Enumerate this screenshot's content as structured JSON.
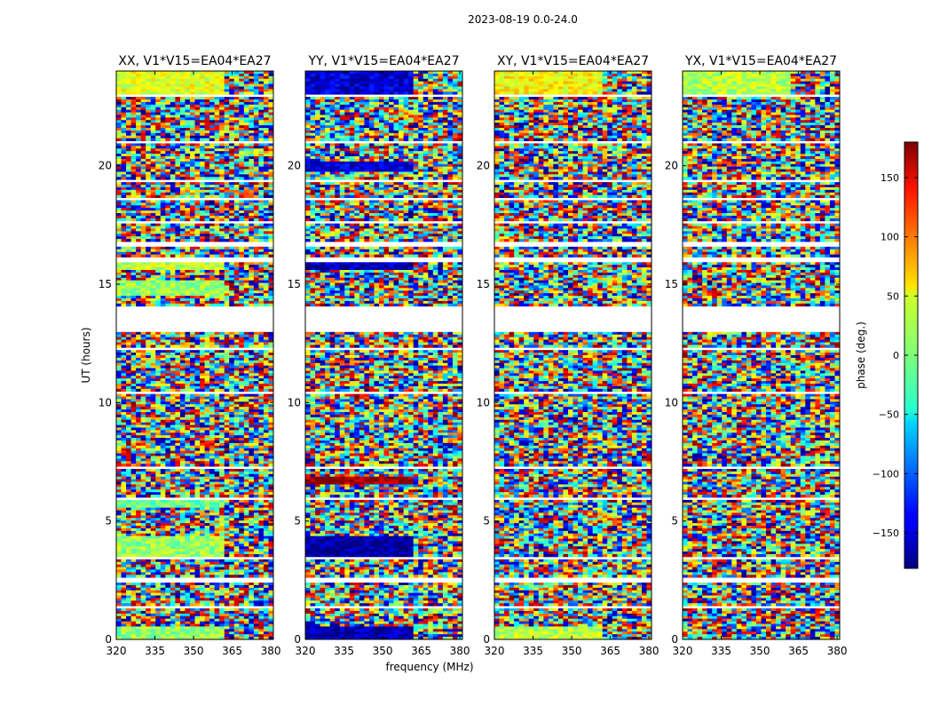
{
  "chart_data": {
    "type": "heatmap",
    "suptitle": "2023-08-19 0.0-24.0",
    "xlabel": "frequency (MHz)",
    "ylabel": "UT (hours)",
    "xlim": [
      320,
      381
    ],
    "ylim": [
      0,
      24
    ],
    "x_ticks": [
      320,
      335,
      350,
      365,
      380
    ],
    "y_ticks": [
      0,
      5,
      10,
      15,
      20
    ],
    "colorbar": {
      "label": "phase (deg.)",
      "range": [
        -180,
        180
      ],
      "ticks": [
        150,
        100,
        50,
        0,
        -50,
        -100,
        -150
      ],
      "tick_labels": [
        "150",
        "100",
        "50",
        "0",
        "−50",
        "−100",
        "−150"
      ],
      "colormap": "jet"
    },
    "data_gaps_hours": [
      [
        0.5,
        0.55
      ],
      [
        1.3,
        1.42
      ],
      [
        2.45,
        2.6
      ],
      [
        3.35,
        3.45
      ],
      [
        5.85,
        6.0
      ],
      [
        7.2,
        7.3
      ],
      [
        10.4,
        10.5
      ],
      [
        12.2,
        12.3
      ],
      [
        13.0,
        14.1
      ],
      [
        15.55,
        15.6
      ],
      [
        15.95,
        16.1
      ],
      [
        16.6,
        16.75
      ],
      [
        17.6,
        17.72
      ],
      [
        18.5,
        18.62
      ],
      [
        19.3,
        19.38
      ],
      [
        20.5,
        20.55
      ],
      [
        20.9,
        21.05
      ],
      [
        22.9,
        23.0
      ]
    ],
    "series": [
      {
        "name": "XX, V1*V15=EA04*EA27",
        "coherent_bands": [
          {
            "t": [
              22.95,
              24.0
            ],
            "phase": 35,
            "f_max": 362
          },
          {
            "t": [
              15.65,
              15.95
            ],
            "phase": 25,
            "f_max": 362
          },
          {
            "t": [
              14.5,
              15.2
            ],
            "phase": 5,
            "f_max": 362
          },
          {
            "t": [
              5.6,
              5.85
            ],
            "phase": -5,
            "f_max": 362
          },
          {
            "t": [
              3.4,
              4.4
            ],
            "phase": 10,
            "f_max": 362
          },
          {
            "t": [
              0.0,
              0.5
            ],
            "phase": 5,
            "f_max": 362
          }
        ]
      },
      {
        "name": "YY, V1*V15=EA04*EA27",
        "coherent_bands": [
          {
            "t": [
              22.95,
              24.0
            ],
            "phase": -150,
            "f_max": 362
          },
          {
            "t": [
              15.65,
              15.95
            ],
            "phase": -160,
            "f_max": 362
          },
          {
            "t": [
              19.8,
              20.2
            ],
            "phase": -150,
            "f_max": 362
          },
          {
            "t": [
              6.6,
              6.9
            ],
            "phase": 170,
            "f_max": 362
          },
          {
            "t": [
              3.4,
              4.4
            ],
            "phase": -170,
            "f_max": 362
          },
          {
            "t": [
              0.0,
              0.5
            ],
            "phase": -165,
            "f_max": 362
          }
        ]
      },
      {
        "name": "XY, V1*V15=EA04*EA27",
        "coherent_bands": [
          {
            "t": [
              22.95,
              24.0
            ],
            "phase": 45,
            "f_max": 362
          },
          {
            "t": [
              0.0,
              0.5
            ],
            "phase": 20,
            "f_max": 362
          }
        ]
      },
      {
        "name": "YX, V1*V15=EA04*EA27",
        "coherent_bands": [
          {
            "t": [
              22.95,
              24.0
            ],
            "phase": 20,
            "f_max": 362
          }
        ]
      }
    ]
  }
}
